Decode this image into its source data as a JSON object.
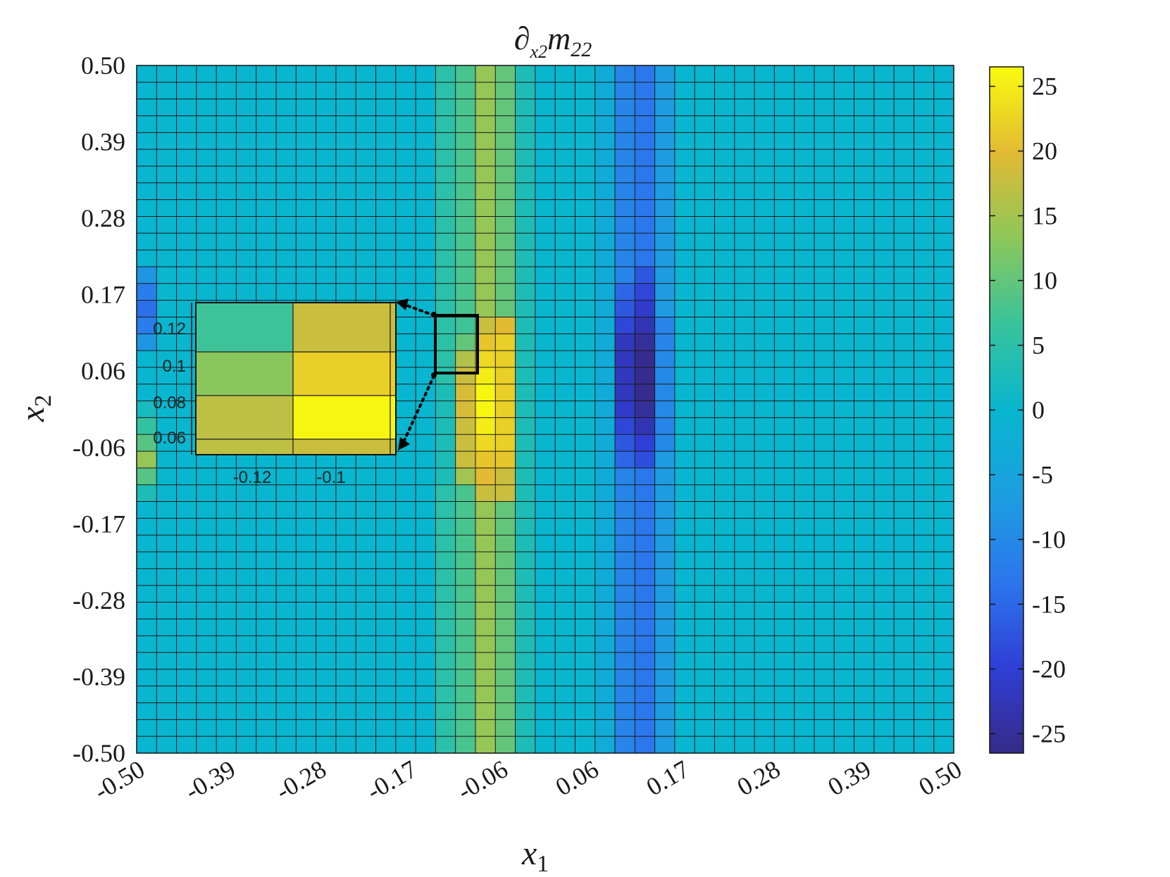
{
  "chart_data": {
    "type": "heatmap",
    "title": "∂x2 m22",
    "title_main": "∂",
    "title_sub": "x2",
    "title_rest": "m",
    "title_rest_sub": "22",
    "xlabel": "x1",
    "xlabel_main": "x",
    "xlabel_sub": "1",
    "ylabel": "x2",
    "ylabel_main": "x",
    "ylabel_sub": "2",
    "xlim": [
      -0.5,
      0.5
    ],
    "ylim": [
      -0.5,
      0.5
    ],
    "x_ticks": [
      "-0.50",
      "-0.39",
      "-0.28",
      "-0.17",
      "-0.06",
      "0.06",
      "0.17",
      "0.28",
      "0.39",
      "0.50"
    ],
    "y_ticks": [
      "0.50",
      "0.39",
      "0.28",
      "0.17",
      "0.06",
      "-0.06",
      "-0.17",
      "-0.28",
      "-0.39",
      "-0.50"
    ],
    "grid": {
      "cols": 41,
      "rows": 41
    },
    "colormap": "parula",
    "colorbar": {
      "limits": [
        -26.5,
        26.5
      ],
      "ticks": [
        25,
        20,
        15,
        10,
        5,
        0,
        -5,
        -10,
        -15,
        -20,
        -25
      ],
      "tick_labels": [
        "25",
        "20",
        "15",
        "10",
        "5",
        "0",
        "-5",
        "-10",
        "-15",
        "-20",
        "-25"
      ]
    },
    "base_value": 0,
    "column_values": [
      {
        "col": 15,
        "value": 5
      },
      {
        "col": 16,
        "value": 8
      },
      {
        "col": 17,
        "value": 14
      },
      {
        "col": 18,
        "value": 10
      },
      {
        "col": 19,
        "value": 3
      },
      {
        "col": 23,
        "value": -3
      },
      {
        "col": 24,
        "value": -11
      },
      {
        "col": 25,
        "value": -13
      },
      {
        "col": 26,
        "value": -7
      }
    ],
    "cell_values": [
      {
        "col": 15,
        "row": 19,
        "value": 3
      },
      {
        "col": 15,
        "row": 20,
        "value": 3
      },
      {
        "col": 15,
        "row": 21,
        "value": 3
      },
      {
        "col": 15,
        "row": 22,
        "value": 3
      },
      {
        "col": 15,
        "row": 23,
        "value": 3
      },
      {
        "col": 15,
        "row": 24,
        "value": 3
      },
      {
        "col": 16,
        "row": 15,
        "value": 7
      },
      {
        "col": 16,
        "row": 16,
        "value": 10
      },
      {
        "col": 16,
        "row": 17,
        "value": 16
      },
      {
        "col": 16,
        "row": 18,
        "value": 18
      },
      {
        "col": 16,
        "row": 19,
        "value": 19
      },
      {
        "col": 16,
        "row": 20,
        "value": 19
      },
      {
        "col": 16,
        "row": 21,
        "value": 18
      },
      {
        "col": 16,
        "row": 22,
        "value": 18
      },
      {
        "col": 16,
        "row": 23,
        "value": 18
      },
      {
        "col": 16,
        "row": 24,
        "value": 15
      },
      {
        "col": 17,
        "row": 15,
        "value": 18
      },
      {
        "col": 17,
        "row": 16,
        "value": 21
      },
      {
        "col": 17,
        "row": 17,
        "value": 23
      },
      {
        "col": 17,
        "row": 18,
        "value": 25
      },
      {
        "col": 17,
        "row": 19,
        "value": 26
      },
      {
        "col": 17,
        "row": 20,
        "value": 26
      },
      {
        "col": 17,
        "row": 21,
        "value": 25
      },
      {
        "col": 17,
        "row": 22,
        "value": 23
      },
      {
        "col": 17,
        "row": 23,
        "value": 21
      },
      {
        "col": 17,
        "row": 24,
        "value": 20
      },
      {
        "col": 17,
        "row": 25,
        "value": 18
      },
      {
        "col": 18,
        "row": 15,
        "value": 20
      },
      {
        "col": 18,
        "row": 16,
        "value": 22
      },
      {
        "col": 18,
        "row": 17,
        "value": 22
      },
      {
        "col": 18,
        "row": 18,
        "value": 22
      },
      {
        "col": 18,
        "row": 19,
        "value": 22
      },
      {
        "col": 18,
        "row": 20,
        "value": 22
      },
      {
        "col": 18,
        "row": 21,
        "value": 22
      },
      {
        "col": 18,
        "row": 22,
        "value": 22
      },
      {
        "col": 18,
        "row": 23,
        "value": 21
      },
      {
        "col": 18,
        "row": 24,
        "value": 18
      },
      {
        "col": 18,
        "row": 25,
        "value": 18
      },
      {
        "col": 24,
        "row": 13,
        "value": -15
      },
      {
        "col": 24,
        "row": 14,
        "value": -17
      },
      {
        "col": 24,
        "row": 15,
        "value": -19
      },
      {
        "col": 24,
        "row": 16,
        "value": -22
      },
      {
        "col": 24,
        "row": 17,
        "value": -22
      },
      {
        "col": 24,
        "row": 18,
        "value": -22
      },
      {
        "col": 24,
        "row": 19,
        "value": -22
      },
      {
        "col": 24,
        "row": 20,
        "value": -21
      },
      {
        "col": 24,
        "row": 21,
        "value": -19
      },
      {
        "col": 24,
        "row": 22,
        "value": -17
      },
      {
        "col": 24,
        "row": 23,
        "value": -15
      },
      {
        "col": 25,
        "row": 12,
        "value": -17
      },
      {
        "col": 25,
        "row": 13,
        "value": -19
      },
      {
        "col": 25,
        "row": 14,
        "value": -21
      },
      {
        "col": 25,
        "row": 15,
        "value": -23
      },
      {
        "col": 25,
        "row": 16,
        "value": -25
      },
      {
        "col": 25,
        "row": 17,
        "value": -26
      },
      {
        "col": 25,
        "row": 18,
        "value": -26
      },
      {
        "col": 25,
        "row": 19,
        "value": -26
      },
      {
        "col": 25,
        "row": 20,
        "value": -25
      },
      {
        "col": 25,
        "row": 21,
        "value": -23
      },
      {
        "col": 25,
        "row": 22,
        "value": -20
      },
      {
        "col": 25,
        "row": 23,
        "value": -18
      },
      {
        "col": 26,
        "row": 15,
        "value": -11
      },
      {
        "col": 26,
        "row": 16,
        "value": -11
      },
      {
        "col": 26,
        "row": 17,
        "value": -10
      },
      {
        "col": 26,
        "row": 18,
        "value": -10
      },
      {
        "col": 26,
        "row": 19,
        "value": -10
      },
      {
        "col": 26,
        "row": 20,
        "value": -10
      },
      {
        "col": 26,
        "row": 21,
        "value": -11
      },
      {
        "col": 26,
        "row": 22,
        "value": -10
      },
      {
        "col": 0,
        "row": 12,
        "value": -8
      },
      {
        "col": 0,
        "row": 13,
        "value": -12
      },
      {
        "col": 0,
        "row": 14,
        "value": -14
      },
      {
        "col": 0,
        "row": 15,
        "value": -12
      },
      {
        "col": 0,
        "row": 16,
        "value": -8
      },
      {
        "col": 0,
        "row": 20,
        "value": 2
      },
      {
        "col": 0,
        "row": 21,
        "value": 6
      },
      {
        "col": 0,
        "row": 22,
        "value": 9
      },
      {
        "col": 0,
        "row": 23,
        "value": 14
      },
      {
        "col": 0,
        "row": 24,
        "value": 9
      },
      {
        "col": 0,
        "row": 25,
        "value": 3
      }
    ],
    "inset": {
      "x_ticks": [
        "-0.12",
        "-0.1"
      ],
      "y_ticks": [
        "0.12",
        "0.1",
        "0.08",
        "0.06"
      ],
      "cells": [
        {
          "r": 0,
          "c": 0,
          "value": 7
        },
        {
          "r": 0,
          "c": 1,
          "value": 18
        },
        {
          "r": 1,
          "c": 0,
          "value": 13
        },
        {
          "r": 1,
          "c": 1,
          "value": 22
        },
        {
          "r": 2,
          "c": 0,
          "value": 17
        },
        {
          "r": 2,
          "c": 1,
          "value": 26
        },
        {
          "r": 3,
          "c": 0,
          "value": 17
        },
        {
          "r": 3,
          "c": 1,
          "value": 18
        }
      ]
    }
  }
}
